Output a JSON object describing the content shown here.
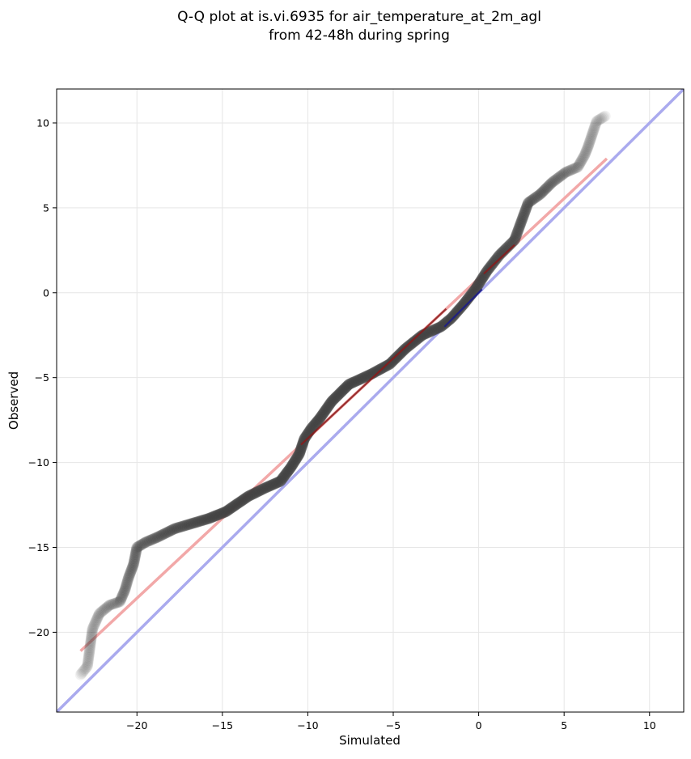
{
  "chart_data": {
    "type": "scatter",
    "title": "Q-Q plot at is.vi.6935 for air_temperature_at_2m_agl",
    "subtitle": "from 42-48h during spring",
    "xlabel": "Simulated",
    "ylabel": "Observed",
    "xlim": [
      -24.7,
      12.0
    ],
    "ylim": [
      -24.7,
      12.0
    ],
    "xticks": [
      -20,
      -15,
      -10,
      -5,
      0,
      5,
      10
    ],
    "yticks": [
      -20,
      -15,
      -10,
      -5,
      0,
      5,
      10
    ],
    "x_tick_labels": [
      "−20",
      "−15",
      "−10",
      "−5",
      "0",
      "5",
      "10"
    ],
    "y_tick_labels": [
      "−20",
      "−15",
      "−10",
      "−5",
      "0",
      "5",
      "10"
    ],
    "grid": true,
    "colors": {
      "points": "#404040",
      "identity_line": "#aaaaee",
      "fit_line": "#f2a8a8",
      "center_fit": "#8b1a1a",
      "center_identity": "#1a1a8b"
    },
    "qq_curve": [
      [
        -23.3,
        -22.5
      ],
      [
        -22.9,
        -22.0
      ],
      [
        -22.6,
        -19.8
      ],
      [
        -22.2,
        -18.9
      ],
      [
        -21.6,
        -18.4
      ],
      [
        -21.0,
        -18.2
      ],
      [
        -20.7,
        -17.5
      ],
      [
        -20.5,
        -16.8
      ],
      [
        -20.2,
        -16.0
      ],
      [
        -20.0,
        -15.0
      ],
      [
        -19.5,
        -14.7
      ],
      [
        -18.8,
        -14.4
      ],
      [
        -17.8,
        -13.9
      ],
      [
        -16.8,
        -13.6
      ],
      [
        -15.8,
        -13.3
      ],
      [
        -14.8,
        -12.9
      ],
      [
        -13.5,
        -12.0
      ],
      [
        -12.5,
        -11.5
      ],
      [
        -11.6,
        -11.1
      ],
      [
        -11.0,
        -10.3
      ],
      [
        -10.5,
        -9.5
      ],
      [
        -10.2,
        -8.6
      ],
      [
        -9.8,
        -8.0
      ],
      [
        -9.3,
        -7.4
      ],
      [
        -8.6,
        -6.4
      ],
      [
        -7.6,
        -5.4
      ],
      [
        -6.3,
        -4.8
      ],
      [
        -5.2,
        -4.2
      ],
      [
        -4.3,
        -3.3
      ],
      [
        -3.3,
        -2.5
      ],
      [
        -2.2,
        -2.0
      ],
      [
        -1.6,
        -1.5
      ],
      [
        -0.9,
        -0.7
      ],
      [
        -0.2,
        0.2
      ],
      [
        0.5,
        1.3
      ],
      [
        1.2,
        2.2
      ],
      [
        2.1,
        3.1
      ],
      [
        2.5,
        4.2
      ],
      [
        2.9,
        5.3
      ],
      [
        3.6,
        5.8
      ],
      [
        4.3,
        6.5
      ],
      [
        5.1,
        7.1
      ],
      [
        5.8,
        7.4
      ],
      [
        6.2,
        8.1
      ],
      [
        6.4,
        8.6
      ],
      [
        6.7,
        9.5
      ],
      [
        6.9,
        10.1
      ],
      [
        7.4,
        10.4
      ]
    ],
    "identity_line": [
      [
        -24.7,
        -24.7
      ],
      [
        12.0,
        12.0
      ]
    ],
    "fit_line": [
      [
        -23.3,
        -21.1
      ],
      [
        7.5,
        7.9
      ]
    ]
  }
}
